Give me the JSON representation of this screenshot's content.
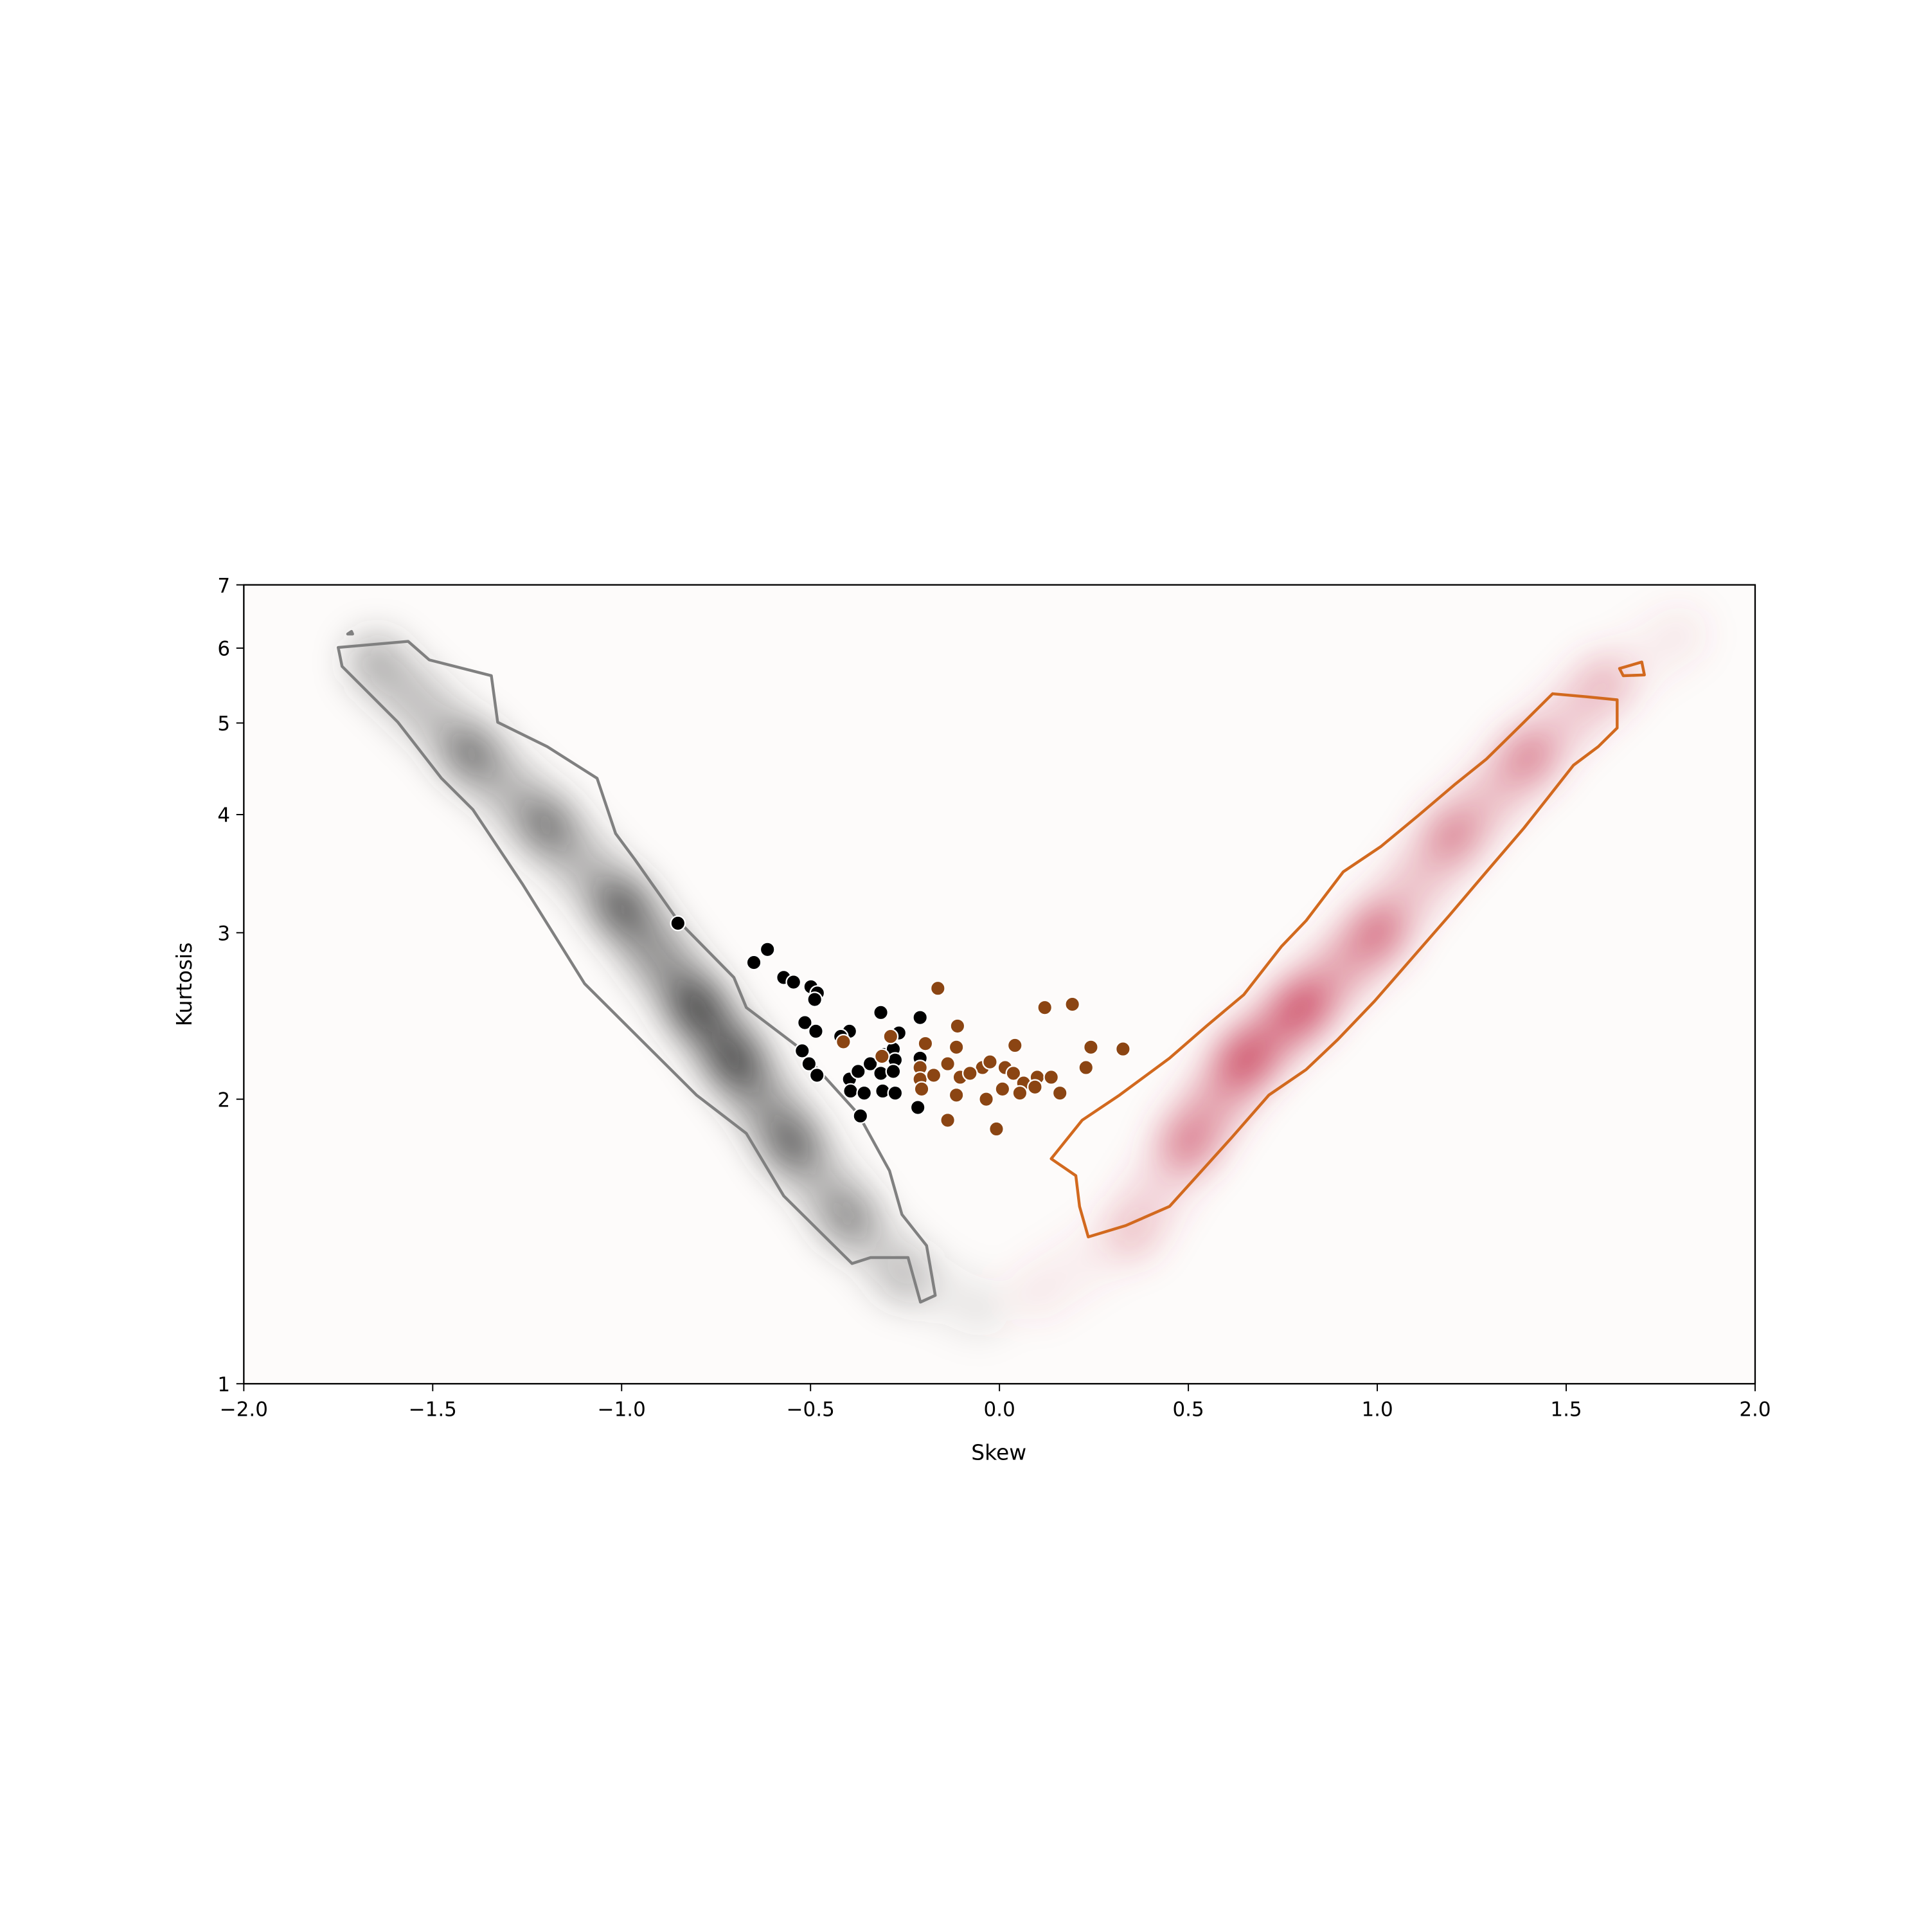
{
  "chart_data": {
    "type": "scatter",
    "title": "",
    "xlabel": "Skew",
    "ylabel": "Kurtosis",
    "xlim": [
      -2.0,
      2.0
    ],
    "ylim": [
      1,
      7
    ],
    "yscale": "log",
    "grid": false,
    "x_ticks": [
      -2.0,
      -1.5,
      -1.0,
      -0.5,
      0.0,
      0.5,
      1.0,
      1.5,
      2.0
    ],
    "x_tick_labels": [
      "−2.0",
      "−1.5",
      "−1.0",
      "−0.5",
      "0.0",
      "0.5",
      "1.0",
      "1.5",
      "2.0"
    ],
    "y_ticks": [
      1,
      2,
      3,
      4,
      5,
      6,
      7
    ],
    "y_tick_labels": [
      "1",
      "2",
      "3",
      "4",
      "5",
      "6",
      "7"
    ],
    "colors": {
      "black_points": "#000000",
      "brown_points": "#8B4513",
      "gray_contour": "#808080",
      "orange_contour": "#D2691E",
      "gray_density": "#3a3a3a",
      "red_density": "#c8405a"
    },
    "density_ridges": [
      {
        "color_key": "gray_density",
        "points": [
          [
            -1.65,
            5.8,
            0.25
          ],
          [
            -1.4,
            4.65,
            0.5
          ],
          [
            -1.2,
            3.9,
            0.4
          ],
          [
            -1.0,
            3.2,
            0.5
          ],
          [
            -0.8,
            2.5,
            0.85
          ],
          [
            -0.7,
            2.2,
            0.75
          ],
          [
            -0.55,
            1.8,
            0.5
          ],
          [
            -0.4,
            1.5,
            0.35
          ],
          [
            -0.25,
            1.3,
            0.15
          ],
          [
            -0.05,
            1.2,
            0.05
          ]
        ]
      },
      {
        "color_key": "red_density",
        "points": [
          [
            0.1,
            1.25,
            0.05
          ],
          [
            0.35,
            1.45,
            0.12
          ],
          [
            0.5,
            1.8,
            0.35
          ],
          [
            0.65,
            2.2,
            0.8
          ],
          [
            0.8,
            2.5,
            0.7
          ],
          [
            1.0,
            3.0,
            0.45
          ],
          [
            1.2,
            3.8,
            0.3
          ],
          [
            1.4,
            4.6,
            0.5
          ],
          [
            1.6,
            5.5,
            0.12
          ],
          [
            1.8,
            6.2,
            0.05
          ]
        ]
      }
    ],
    "contours": [
      {
        "color_key": "gray_contour",
        "points": [
          [
            -1.75,
            6.01
          ],
          [
            -1.565,
            6.1
          ],
          [
            -1.509,
            5.83
          ],
          [
            -1.345,
            5.61
          ],
          [
            -1.328,
            5.01
          ],
          [
            -1.197,
            4.72
          ],
          [
            -1.065,
            4.37
          ],
          [
            -1.016,
            3.82
          ],
          [
            -0.966,
            3.59
          ],
          [
            -0.851,
            3.09
          ],
          [
            -0.703,
            2.69
          ],
          [
            -0.67,
            2.5
          ],
          [
            -0.538,
            2.28
          ],
          [
            -0.374,
            1.93
          ],
          [
            -0.291,
            1.68
          ],
          [
            -0.258,
            1.51
          ],
          [
            -0.193,
            1.4
          ],
          [
            -0.17,
            1.24
          ],
          [
            -0.209,
            1.22
          ],
          [
            -0.242,
            1.36
          ],
          [
            -0.341,
            1.36
          ],
          [
            -0.39,
            1.34
          ],
          [
            -0.571,
            1.58
          ],
          [
            -0.67,
            1.84
          ],
          [
            -0.802,
            2.02
          ],
          [
            -1.098,
            2.65
          ],
          [
            -1.263,
            3.38
          ],
          [
            -1.394,
            4.05
          ],
          [
            -1.477,
            4.37
          ],
          [
            -1.592,
            5.01
          ],
          [
            -1.74,
            5.74
          ]
        ]
      },
      {
        "color_key": "gray_contour",
        "points": [
          [
            -1.725,
            6.21
          ],
          [
            -1.715,
            6.25
          ],
          [
            -1.712,
            6.21
          ]
        ]
      },
      {
        "color_key": "orange_contour",
        "points": [
          [
            0.137,
            1.73
          ],
          [
            0.219,
            1.9
          ],
          [
            0.318,
            2.02
          ],
          [
            0.45,
            2.21
          ],
          [
            0.548,
            2.39
          ],
          [
            0.647,
            2.58
          ],
          [
            0.746,
            2.9
          ],
          [
            0.812,
            3.09
          ],
          [
            0.91,
            3.48
          ],
          [
            1.009,
            3.7
          ],
          [
            1.108,
            3.99
          ],
          [
            1.207,
            4.31
          ],
          [
            1.289,
            4.58
          ],
          [
            1.388,
            5.01
          ],
          [
            1.464,
            5.37
          ],
          [
            1.553,
            5.33
          ],
          [
            1.635,
            5.29
          ],
          [
            1.635,
            4.94
          ],
          [
            1.585,
            4.72
          ],
          [
            1.519,
            4.51
          ],
          [
            1.454,
            4.18
          ],
          [
            1.388,
            3.87
          ],
          [
            1.289,
            3.48
          ],
          [
            1.191,
            3.13
          ],
          [
            1.092,
            2.82
          ],
          [
            0.993,
            2.54
          ],
          [
            0.894,
            2.31
          ],
          [
            0.812,
            2.15
          ],
          [
            0.713,
            2.02
          ],
          [
            0.614,
            1.82
          ],
          [
            0.45,
            1.54
          ],
          [
            0.334,
            1.47
          ],
          [
            0.235,
            1.43
          ],
          [
            0.212,
            1.54
          ],
          [
            0.202,
            1.66
          ]
        ]
      },
      {
        "color_key": "orange_contour",
        "points": [
          [
            1.641,
            5.71
          ],
          [
            1.7,
            5.8
          ],
          [
            1.707,
            5.62
          ],
          [
            1.651,
            5.61
          ]
        ]
      }
    ],
    "series": [
      {
        "color_key": "black_points",
        "points": [
          [
            -0.851,
            3.07
          ],
          [
            -0.614,
            2.88
          ],
          [
            -0.65,
            2.79
          ],
          [
            -0.571,
            2.69
          ],
          [
            -0.545,
            2.66
          ],
          [
            -0.499,
            2.63
          ],
          [
            -0.482,
            2.59
          ],
          [
            -0.489,
            2.55
          ],
          [
            -0.314,
            2.47
          ],
          [
            -0.21,
            2.44
          ],
          [
            -0.515,
            2.41
          ],
          [
            -0.486,
            2.36
          ],
          [
            -0.397,
            2.36
          ],
          [
            -0.42,
            2.33
          ],
          [
            -0.522,
            2.25
          ],
          [
            -0.504,
            2.18
          ],
          [
            -0.483,
            2.12
          ],
          [
            -0.397,
            2.1
          ],
          [
            -0.374,
            2.14
          ],
          [
            -0.342,
            2.18
          ],
          [
            -0.305,
            2.23
          ],
          [
            -0.281,
            2.26
          ],
          [
            -0.276,
            2.2
          ],
          [
            -0.314,
            2.13
          ],
          [
            -0.281,
            2.14
          ],
          [
            -0.394,
            2.04
          ],
          [
            -0.358,
            2.03
          ],
          [
            -0.309,
            2.04
          ],
          [
            -0.276,
            2.03
          ],
          [
            -0.216,
            1.96
          ],
          [
            -0.21,
            2.21
          ],
          [
            -0.368,
            1.92
          ],
          [
            -0.266,
            2.35
          ]
        ]
      },
      {
        "color_key": "brown_points",
        "points": [
          [
            -0.163,
            2.62
          ],
          [
            0.193,
            2.52
          ],
          [
            0.12,
            2.5
          ],
          [
            -0.111,
            2.39
          ],
          [
            -0.413,
            2.3
          ],
          [
            -0.288,
            2.33
          ],
          [
            -0.196,
            2.29
          ],
          [
            -0.114,
            2.27
          ],
          [
            0.041,
            2.28
          ],
          [
            0.242,
            2.27
          ],
          [
            0.327,
            2.26
          ],
          [
            -0.311,
            2.22
          ],
          [
            0.229,
            2.16
          ],
          [
            -0.21,
            2.16
          ],
          [
            -0.137,
            2.18
          ],
          [
            -0.045,
            2.16
          ],
          [
            0.015,
            2.16
          ],
          [
            -0.21,
            2.1
          ],
          [
            -0.174,
            2.12
          ],
          [
            -0.104,
            2.11
          ],
          [
            -0.078,
            2.13
          ],
          [
            -0.025,
            2.19
          ],
          [
            0.037,
            2.13
          ],
          [
            0.1,
            2.11
          ],
          [
            0.137,
            2.11
          ],
          [
            0.064,
            2.08
          ],
          [
            0.094,
            2.06
          ],
          [
            0.008,
            2.05
          ],
          [
            0.054,
            2.03
          ],
          [
            0.16,
            2.03
          ],
          [
            -0.206,
            2.05
          ],
          [
            -0.035,
            2.0
          ],
          [
            -0.137,
            1.9
          ],
          [
            -0.008,
            1.86
          ],
          [
            -0.114,
            2.02
          ]
        ]
      }
    ]
  }
}
